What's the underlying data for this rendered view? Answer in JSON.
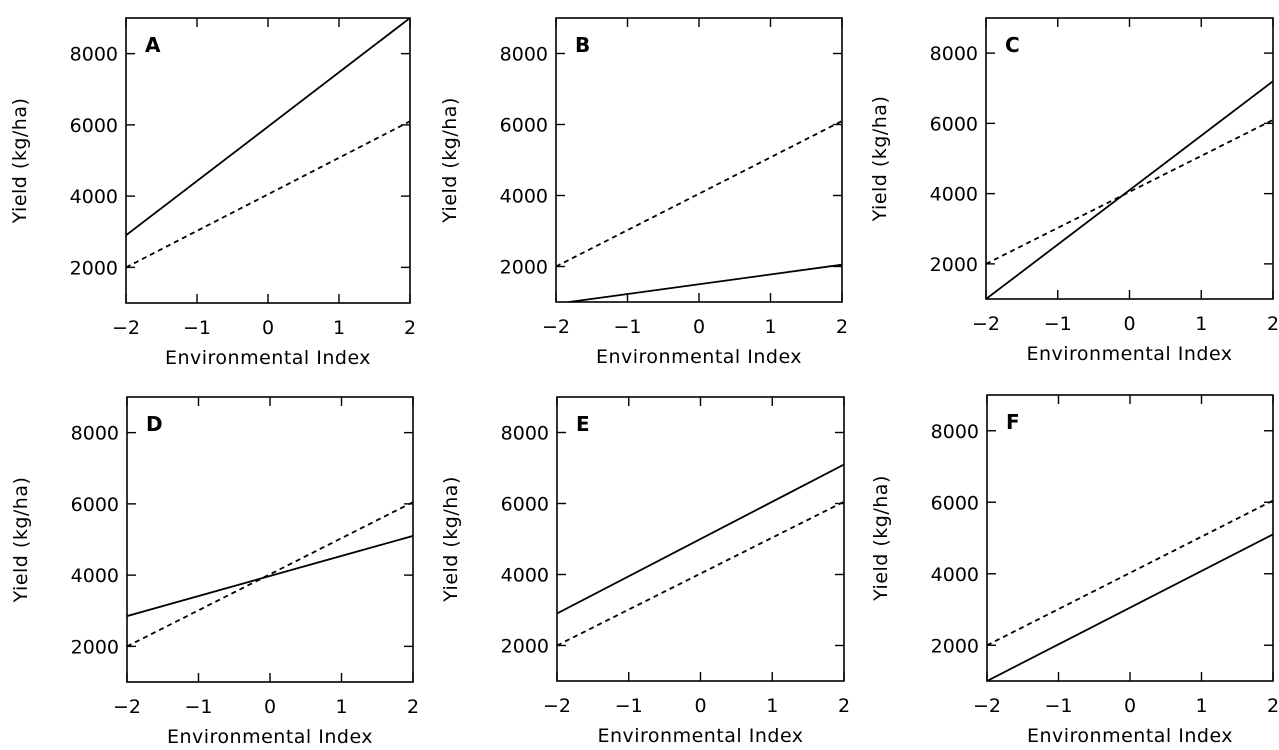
{
  "chart_data": [
    {
      "type": "line",
      "panel": "A",
      "xlabel": "Environmental Index",
      "ylabel": "Yield (kg/ha)",
      "xlim": [
        -2,
        2
      ],
      "ylim": [
        1000,
        9000
      ],
      "xticks": [
        -2,
        -1,
        0,
        1,
        2
      ],
      "yticks": [
        2000,
        4000,
        6000,
        8000
      ],
      "series": [
        {
          "style": "solid",
          "x": [
            -2,
            2
          ],
          "y": [
            2900,
            9000
          ]
        },
        {
          "style": "dashed",
          "x": [
            -2,
            2
          ],
          "y": [
            2000,
            6100
          ]
        }
      ]
    },
    {
      "type": "line",
      "panel": "B",
      "xlabel": "Environmental Index",
      "ylabel": "Yield (kg/ha)",
      "xlim": [
        -2,
        2
      ],
      "ylim": [
        1000,
        9000
      ],
      "xticks": [
        -2,
        -1,
        0,
        1,
        2
      ],
      "yticks": [
        2000,
        4000,
        6000,
        8000
      ],
      "series": [
        {
          "style": "solid",
          "x": [
            -2,
            2
          ],
          "y": [
            950,
            2050
          ]
        },
        {
          "style": "dashed",
          "x": [
            -2,
            2
          ],
          "y": [
            2000,
            6100
          ]
        }
      ]
    },
    {
      "type": "line",
      "panel": "C",
      "xlabel": "Environmental Index",
      "ylabel": "Yield (kg/ha)",
      "xlim": [
        -2,
        2
      ],
      "ylim": [
        1000,
        9000
      ],
      "xticks": [
        -2,
        -1,
        0,
        1,
        2
      ],
      "yticks": [
        2000,
        4000,
        6000,
        8000
      ],
      "series": [
        {
          "style": "solid",
          "x": [
            -2,
            2
          ],
          "y": [
            1000,
            7200
          ]
        },
        {
          "style": "dashed",
          "x": [
            -2,
            2
          ],
          "y": [
            2000,
            6100
          ]
        }
      ]
    },
    {
      "type": "line",
      "panel": "D",
      "xlabel": "Environmental Index",
      "ylabel": "Yield (kg/ha)",
      "xlim": [
        -2,
        2
      ],
      "ylim": [
        1000,
        9000
      ],
      "xticks": [
        -2,
        -1,
        0,
        1,
        2
      ],
      "yticks": [
        2000,
        4000,
        6000,
        8000
      ],
      "series": [
        {
          "style": "solid",
          "x": [
            -2,
            2
          ],
          "y": [
            2850,
            5100
          ]
        },
        {
          "style": "dashed",
          "x": [
            -2,
            2
          ],
          "y": [
            2000,
            6050
          ]
        }
      ]
    },
    {
      "type": "line",
      "panel": "E",
      "xlabel": "Environmental Index",
      "ylabel": "Yield (kg/ha)",
      "xlim": [
        -2,
        2
      ],
      "ylim": [
        1000,
        9000
      ],
      "xticks": [
        -2,
        -1,
        0,
        1,
        2
      ],
      "yticks": [
        2000,
        4000,
        6000,
        8000
      ],
      "series": [
        {
          "style": "solid",
          "x": [
            -2,
            2
          ],
          "y": [
            2900,
            7100
          ]
        },
        {
          "style": "dashed",
          "x": [
            -2,
            2
          ],
          "y": [
            2000,
            6050
          ]
        }
      ]
    },
    {
      "type": "line",
      "panel": "F",
      "xlabel": "Environmental Index",
      "ylabel": "Yield (kg/ha)",
      "xlim": [
        -2,
        2
      ],
      "ylim": [
        1000,
        9000
      ],
      "xticks": [
        -2,
        -1,
        0,
        1,
        2
      ],
      "yticks": [
        2000,
        4000,
        6000,
        8000
      ],
      "series": [
        {
          "style": "solid",
          "x": [
            -2,
            2
          ],
          "y": [
            1000,
            5100
          ]
        },
        {
          "style": "dashed",
          "x": [
            -2,
            2
          ],
          "y": [
            2000,
            6050
          ]
        }
      ]
    }
  ]
}
